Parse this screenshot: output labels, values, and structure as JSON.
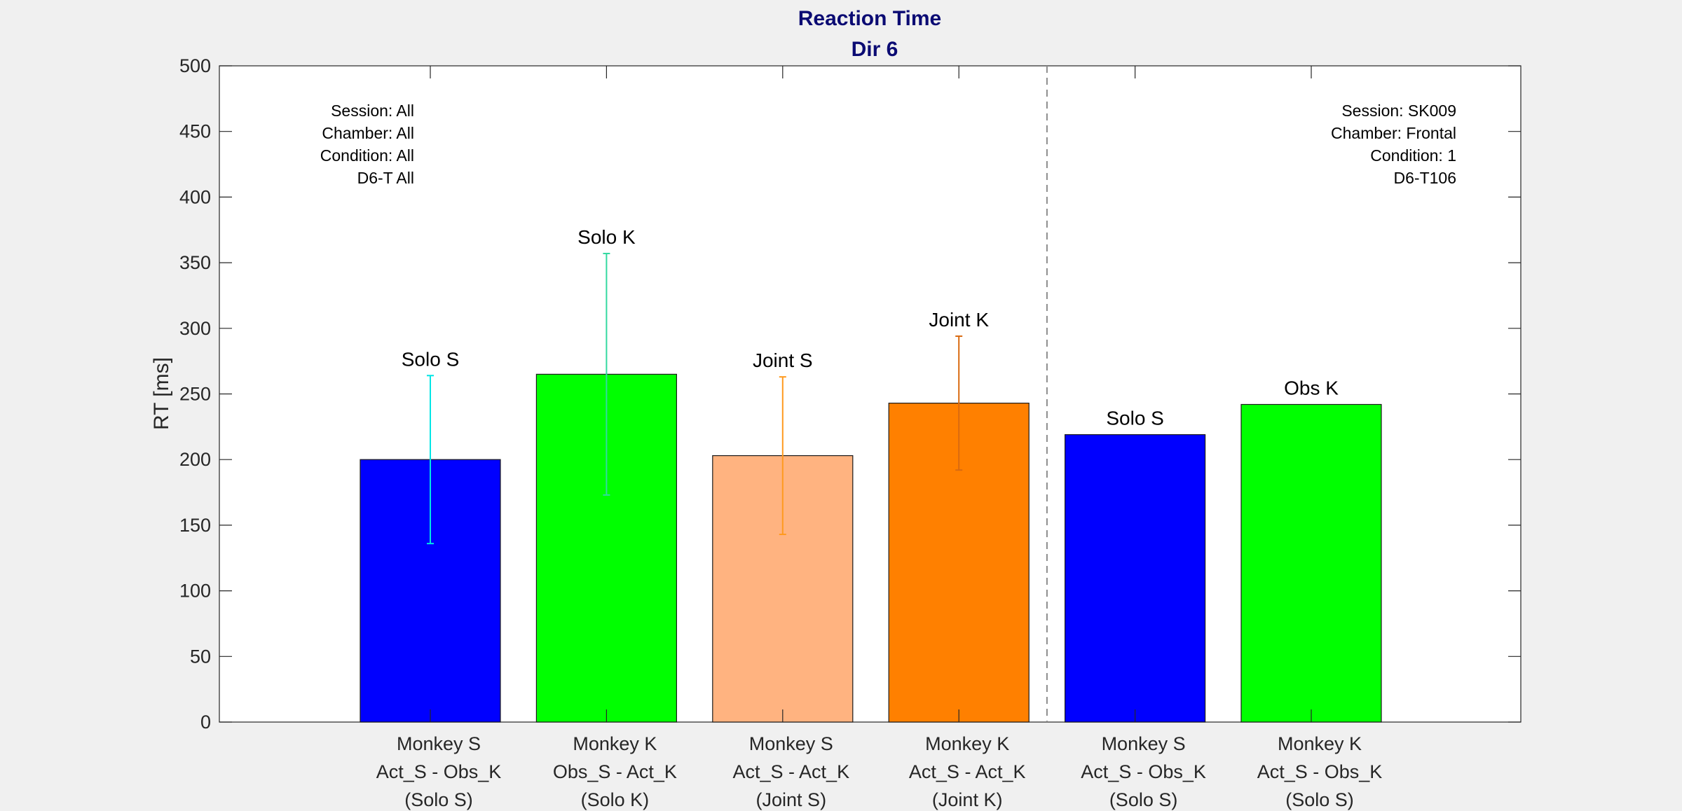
{
  "chart_data": {
    "type": "bar",
    "title": "Reaction Time",
    "subtitle": "Dir 6",
    "ylabel": "RT [ms]",
    "xlabel": "",
    "ylim": [
      0,
      500
    ],
    "yticks": [
      0,
      50,
      100,
      150,
      200,
      250,
      300,
      350,
      400,
      450,
      500
    ],
    "grid": false,
    "bars": [
      {
        "label": "Solo S",
        "tick": [
          "Monkey S",
          "Act_S - Obs_K",
          "(Solo S)"
        ],
        "value": 200,
        "err_low": 136,
        "err_high": 264,
        "color": "#0000ff",
        "err_color": "#00e5e5"
      },
      {
        "label": "Solo K",
        "tick": [
          "Monkey K",
          "Obs_S - Act_K",
          "(Solo K)"
        ],
        "value": 265,
        "err_low": 173,
        "err_high": 357,
        "color": "#00ff00",
        "err_color": "#33d9a0"
      },
      {
        "label": "Joint S",
        "tick": [
          "Monkey S",
          "Act_S - Act_K",
          "(Joint S)"
        ],
        "value": 203,
        "err_low": 143,
        "err_high": 263,
        "color": "#ffb380",
        "err_color": "#ff9a1f"
      },
      {
        "label": "Joint K",
        "tick": [
          "Monkey K",
          "Act_S - Act_K",
          "(Joint K)"
        ],
        "value": 243,
        "err_low": 192,
        "err_high": 294,
        "color": "#ff8000",
        "err_color": "#d96a10"
      },
      {
        "label": "Solo S",
        "tick": [
          "Monkey S",
          "Act_S - Obs_K",
          "(Solo S)"
        ],
        "value": 219,
        "color": "#0000ff"
      },
      {
        "label": "Obs K",
        "tick": [
          "Monkey K",
          "Act_S - Obs_K",
          "(Solo S)"
        ],
        "value": 242,
        "color": "#00ff00"
      }
    ],
    "annotations": {
      "left": [
        "Session: All",
        "Chamber: All",
        "Condition: All",
        "D6-T All"
      ],
      "right": [
        "Session: SK009",
        "Chamber: Frontal",
        "Condition: 1",
        "D6-T106"
      ]
    },
    "divider_after_bar": 4
  }
}
